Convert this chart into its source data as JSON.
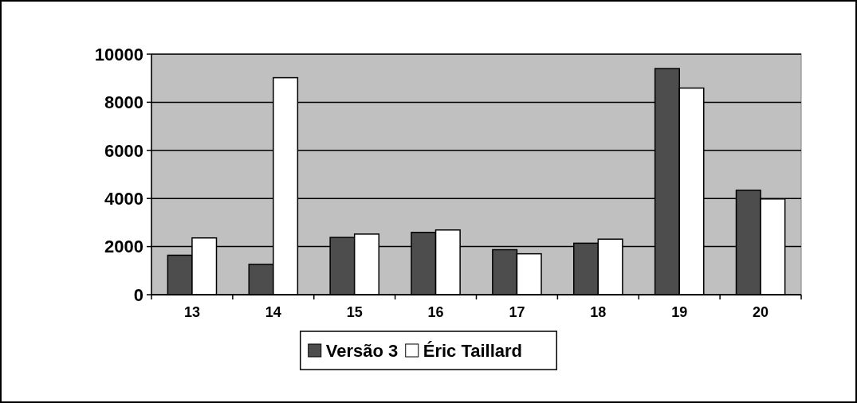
{
  "chart_data": {
    "type": "bar",
    "categories": [
      "13",
      "14",
      "15",
      "16",
      "17",
      "18",
      "19",
      "20"
    ],
    "series": [
      {
        "name": "Versão 3",
        "color": "#4d4d4d",
        "values": [
          1640,
          1260,
          2380,
          2590,
          1870,
          2140,
          9400,
          4340
        ]
      },
      {
        "name": "Éric Taillard",
        "color": "#ffffff",
        "values": [
          2360,
          9020,
          2520,
          2690,
          1700,
          2310,
          8590,
          3980
        ]
      }
    ],
    "ylim": [
      0,
      10000
    ],
    "yticks": [
      0,
      2000,
      4000,
      6000,
      8000,
      10000
    ],
    "grid": "y",
    "legend": "bottom"
  }
}
